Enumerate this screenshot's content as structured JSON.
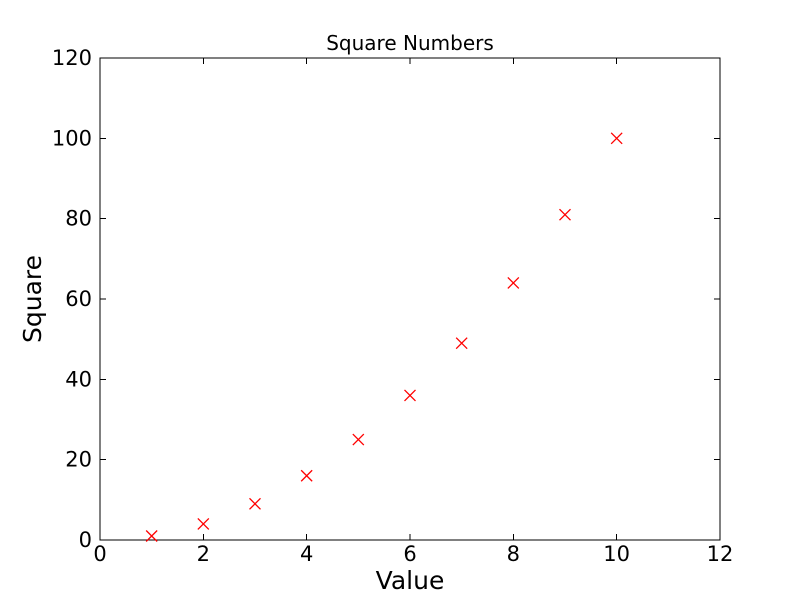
{
  "figure": {
    "background": "#ffffff"
  },
  "chart_data": {
    "type": "scatter",
    "title": "Square Numbers",
    "xlabel": "Value",
    "ylabel": "Square",
    "x": [
      1,
      2,
      3,
      4,
      5,
      6,
      7,
      8,
      9,
      10
    ],
    "y": [
      1,
      4,
      9,
      16,
      25,
      36,
      49,
      64,
      81,
      100
    ],
    "marker": "x",
    "marker_color": "#ff0000",
    "axis_color": "#000000",
    "xlim": [
      0,
      12
    ],
    "ylim": [
      0,
      120
    ],
    "xticks": [
      0,
      2,
      4,
      6,
      8,
      10,
      12
    ],
    "yticks": [
      0,
      20,
      40,
      60,
      80,
      100,
      120
    ],
    "grid": false,
    "legend": "none"
  }
}
